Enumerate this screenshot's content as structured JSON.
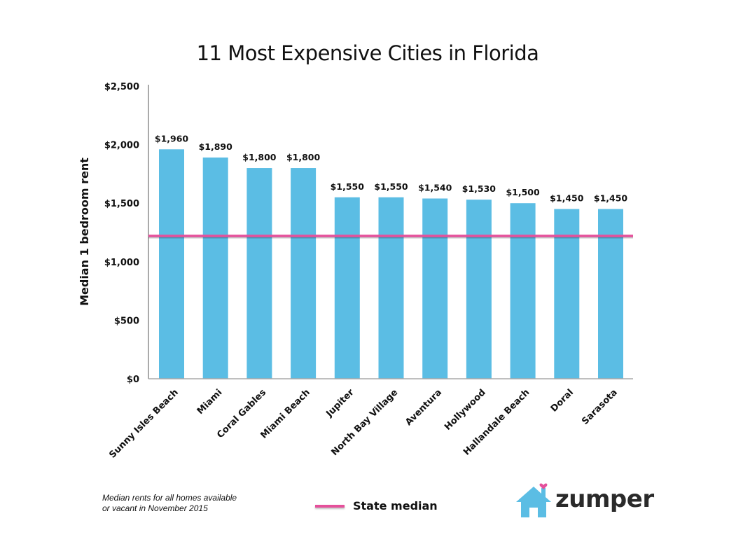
{
  "chart_data": {
    "type": "bar",
    "title": "11 Most Expensive Cities in Florida",
    "xlabel": "",
    "ylabel": "Median 1 bedroom rent",
    "ylim": [
      0,
      2500
    ],
    "yticks": [
      0,
      500,
      1000,
      1500,
      2000,
      2500
    ],
    "ytick_labels": [
      "$0",
      "$500",
      "$1,000",
      "$1,500",
      "$2,000",
      "$2,500"
    ],
    "categories": [
      "Sunny Isles Beach",
      "Miami",
      "Coral Gables",
      "Miami Beach",
      "Jupiter",
      "North Bay Village",
      "Aventura",
      "Hollywood",
      "Hallandale Beach",
      "Doral",
      "Sarasota"
    ],
    "values": [
      1960,
      1890,
      1800,
      1800,
      1550,
      1550,
      1540,
      1530,
      1500,
      1450,
      1450
    ],
    "data_labels": [
      "$1,960",
      "$1,890",
      "$1,800",
      "$1,800",
      "$1,550",
      "$1,550",
      "$1,540",
      "$1,530",
      "$1,500",
      "$1,450",
      "$1,450"
    ],
    "reference_line": {
      "name": "State median",
      "value": 1220
    },
    "grid": false,
    "legend": "bottom-center",
    "colors": {
      "bar": "#5bbde4",
      "reference_line": "#e5509b",
      "axis": "#aaaaaa"
    }
  },
  "footnote": {
    "line1": "Median rents for all homes available",
    "line2": "or vacant in November 2015"
  },
  "legend": {
    "label": "State median"
  },
  "logo": {
    "text": "zumper",
    "house_color": "#5bbde4",
    "heart_color": "#e5509b"
  }
}
